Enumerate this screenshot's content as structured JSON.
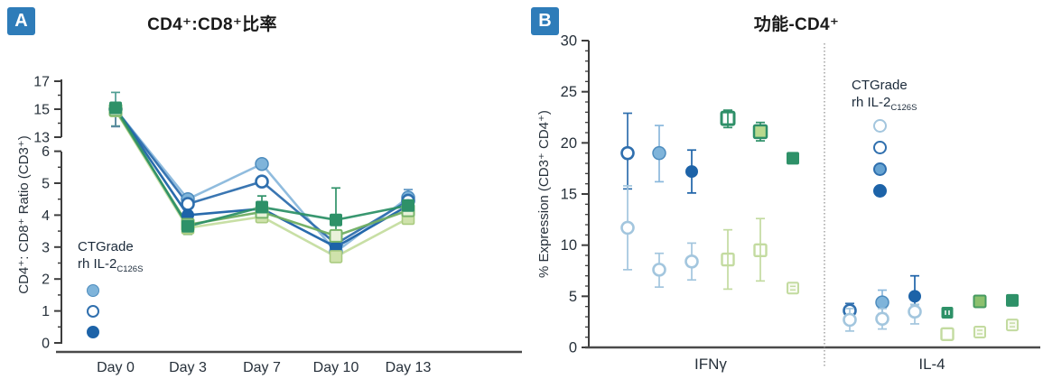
{
  "colors": {
    "badge": "#2e7cb9",
    "axis": "#3d3d3d",
    "x_axis": "#4a4a4a",
    "divider": "#8a8a8a",
    "tick_text": "#26303a"
  },
  "marker_styles": {
    "lightblue_filled": {
      "shape": "circle",
      "fill": "#7fb4da",
      "stroke": "#4d8cbe",
      "sw": 1.5,
      "r": 7,
      "line": "#8ab8dc"
    },
    "blue_open": {
      "shape": "circle",
      "fill": "#ffffff",
      "stroke": "#2f6fae",
      "sw": 2.6,
      "r": 6.5,
      "line": "#2f6fae"
    },
    "paleblue_open": {
      "shape": "circle",
      "fill": "#ffffff",
      "stroke": "#a3c6de",
      "sw": 2.6,
      "r": 6.5,
      "line": "#a3c6de"
    },
    "darkblue_filled": {
      "shape": "circle",
      "fill": "#1d63a8",
      "stroke": "#1d63a8",
      "sw": 1,
      "r": 6.5,
      "line": "#1d63a8"
    },
    "lightblue_filled2": {
      "shape": "circle",
      "fill": "#66a3d2",
      "stroke": "#2f6fae",
      "sw": 2,
      "r": 7,
      "line": "#66a3d2"
    },
    "palegreen_filled_sq": {
      "shape": "square",
      "fill": "#cfe2ab",
      "stroke": "#aacb80",
      "sw": 1.6,
      "s": 13,
      "line": "#c5dda0"
    },
    "midgreen_open_sq": {
      "shape": "square",
      "fill": "#e9f2da",
      "stroke": "#79b56a",
      "sw": 2,
      "s": 13,
      "line": "#6fae62"
    },
    "darkgreen_filled_sq": {
      "shape": "square",
      "fill": "#2e9168",
      "stroke": "#2e9168",
      "sw": 1,
      "s": 13,
      "line": "#2e9168"
    },
    "darkgreen_open_sq": {
      "shape": "square",
      "fill": "#ffffff",
      "stroke": "#2e8f68",
      "sw": 3,
      "s": 14,
      "inner": true
    },
    "lightgreen_filled_sq": {
      "shape": "square",
      "fill": "#b9d98e",
      "stroke": "#2e8f68",
      "sw": 2.5,
      "s": 14
    },
    "midgreen_filled_sq": {
      "shape": "square",
      "fill": "#8cc06e",
      "stroke": "#459a60",
      "sw": 2,
      "s": 13
    },
    "palegreen_open_sq": {
      "shape": "square",
      "fill": "#ffffff",
      "stroke": "#c3dba0",
      "sw": 2.4,
      "s": 13,
      "inner": true
    },
    "palegreen_striped_sq": {
      "shape": "square-striped",
      "fill": "#f7faf0",
      "stroke": "#c3dba0",
      "sw": 2,
      "s": 12
    },
    "darkgreen_vtick_sq": {
      "shape": "square-vtick",
      "fill": "#2e9168",
      "stroke": "#2e9168",
      "sw": 1,
      "s": 12
    }
  },
  "chart_data": [
    {
      "panel": "A",
      "type": "line",
      "badge": "A",
      "title": "CD4⁺:CD8⁺比率",
      "ylabel": "CD4⁺: CD8⁺ Ratio (CD3⁺)",
      "categories": [
        "Day 0",
        "Day 3",
        "Day 7",
        "Day 10",
        "Day 13"
      ],
      "y_axis": {
        "upper": {
          "range": [
            13,
            17
          ],
          "ticks": [
            13,
            15,
            17
          ],
          "minor": [
            14,
            16
          ]
        },
        "lower": {
          "range": [
            0,
            6
          ],
          "ticks": [
            0,
            1,
            2,
            3,
            4,
            5,
            6
          ],
          "minor": [
            0.5,
            1.5,
            2.5,
            3.5,
            4.5,
            5.5
          ]
        },
        "broken": true
      },
      "legend": {
        "line1": "CTGrade",
        "line2": "rh IL-2",
        "sub": "C126S",
        "markers": [
          "lightblue_filled",
          "blue_open",
          "darkblue_filled"
        ]
      },
      "series": [
        {
          "name": "light-blue-circle",
          "style": "lightblue_filled",
          "values": [
            15.0,
            4.5,
            5.6,
            2.85,
            4.55
          ]
        },
        {
          "name": "open-blue-circle",
          "style": "blue_open",
          "values": [
            15.0,
            4.35,
            5.05,
            3.1,
            4.45
          ]
        },
        {
          "name": "dark-blue-circle",
          "style": "darkblue_filled",
          "values": [
            15.05,
            4.0,
            4.2,
            3.0,
            4.3
          ]
        },
        {
          "name": "light-green-square",
          "style": "palegreen_filled_sq",
          "values": [
            14.9,
            3.6,
            3.95,
            2.7,
            3.9
          ]
        },
        {
          "name": "mid-green-square",
          "style": "midgreen_open_sq",
          "values": [
            14.95,
            3.7,
            4.1,
            3.35,
            4.15
          ]
        },
        {
          "name": "dark-green-square",
          "style": "darkgreen_filled_sq",
          "values": [
            15.1,
            3.65,
            4.25,
            3.85,
            4.3
          ]
        }
      ],
      "error_bars": [
        {
          "category": "Day 0",
          "low": 13.8,
          "high": 16.2,
          "color": "#4f9e93"
        },
        {
          "category": "Day 0",
          "low": 13.75,
          "high": 15.35,
          "color": "#5b87a0"
        },
        {
          "category": "Day 3",
          "low": 3.4,
          "high": 3.85,
          "color": "#6fae62"
        },
        {
          "category": "Day 7",
          "low": 3.9,
          "high": 4.6,
          "color": "#2e9168"
        },
        {
          "category": "Day 10",
          "low": 3.0,
          "high": 4.85,
          "color": "#2e9168"
        },
        {
          "category": "Day 13",
          "low": 4.3,
          "high": 4.8,
          "color": "#5e96c4"
        }
      ]
    },
    {
      "panel": "B",
      "type": "scatter",
      "badge": "B",
      "title": "功能-CD4⁺",
      "ylabel": "% Expression (CD3⁺ CD4⁺)",
      "y_axis": {
        "range": [
          0,
          30
        ],
        "ticks": [
          0,
          5,
          10,
          15,
          20,
          25,
          30
        ],
        "minor_step": 1
      },
      "divider": true,
      "legend": {
        "line1": "CTGrade",
        "line2": "rh IL-2",
        "sub": "C126S",
        "markers": [
          "paleblue_open",
          "blue_open",
          "lightblue_filled2",
          "darkblue_filled"
        ]
      },
      "groups": [
        {
          "label": "IFNγ",
          "points": [
            {
              "slot": 0,
              "style": "blue_open",
              "value": 19.0,
              "low": 15.5,
              "high": 22.9
            },
            {
              "slot": 0,
              "style": "paleblue_open",
              "value": 11.7,
              "low": 7.6,
              "high": 15.8
            },
            {
              "slot": 1,
              "style": "lightblue_filled",
              "value": 19.0,
              "low": 16.2,
              "high": 21.7
            },
            {
              "slot": 1,
              "style": "paleblue_open",
              "value": 7.6,
              "low": 5.9,
              "high": 9.2
            },
            {
              "slot": 2,
              "style": "darkblue_filled",
              "value": 17.2,
              "low": 15.1,
              "high": 19.3
            },
            {
              "slot": 2,
              "style": "paleblue_open",
              "value": 8.4,
              "low": 6.6,
              "high": 10.2
            },
            {
              "slot": 3,
              "style": "darkgreen_open_sq",
              "value": 22.4,
              "low": 21.5,
              "high": 23.2
            },
            {
              "slot": 3,
              "style": "palegreen_open_sq",
              "value": 8.6,
              "low": 5.7,
              "high": 11.5
            },
            {
              "slot": 4,
              "style": "lightgreen_filled_sq",
              "value": 21.1,
              "low": 20.2,
              "high": 22.0
            },
            {
              "slot": 4,
              "style": "palegreen_open_sq",
              "value": 9.5,
              "low": 6.5,
              "high": 12.6
            },
            {
              "slot": 5,
              "style": "darkgreen_filled_sq",
              "value": 18.5
            },
            {
              "slot": 5,
              "style": "palegreen_striped_sq",
              "value": 5.8
            }
          ]
        },
        {
          "label": "IL-4",
          "points": [
            {
              "slot": 0,
              "style": "blue_open",
              "value": 3.6,
              "low": 2.9,
              "high": 4.3
            },
            {
              "slot": 0,
              "style": "paleblue_open",
              "value": 2.7,
              "low": 1.6,
              "high": 3.8
            },
            {
              "slot": 1,
              "style": "lightblue_filled",
              "value": 4.4,
              "low": 3.3,
              "high": 5.6
            },
            {
              "slot": 1,
              "style": "paleblue_open",
              "value": 2.8,
              "low": 1.8,
              "high": 3.8
            },
            {
              "slot": 2,
              "style": "darkblue_filled",
              "value": 5.0,
              "low": 4.2,
              "high": 7.0
            },
            {
              "slot": 2,
              "style": "paleblue_open",
              "value": 3.5,
              "low": 2.3,
              "high": 4.2
            },
            {
              "slot": 3,
              "style": "darkgreen_vtick_sq",
              "value": 3.4
            },
            {
              "slot": 3,
              "style": "palegreen_open_sq",
              "value": 1.3
            },
            {
              "slot": 4,
              "style": "midgreen_filled_sq",
              "value": 4.5
            },
            {
              "slot": 4,
              "style": "palegreen_striped_sq",
              "value": 1.5
            },
            {
              "slot": 5,
              "style": "darkgreen_filled_sq",
              "value": 4.6
            },
            {
              "slot": 5,
              "style": "palegreen_striped_sq",
              "value": 2.2
            }
          ]
        }
      ]
    }
  ]
}
